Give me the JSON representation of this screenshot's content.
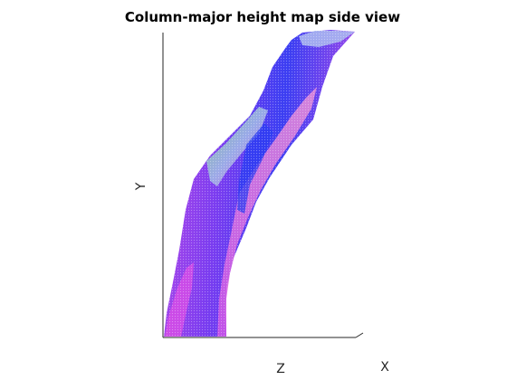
{
  "chart_data": {
    "type": "surface",
    "title": "Column-major height map side view",
    "xlabel": "X",
    "ylabel": "Y",
    "zlabel": "Z",
    "view": "side",
    "grid": false,
    "legend": "none",
    "colormap": "surface normals (RGB)",
    "colors": {
      "axis": "#262626",
      "ridge_green": "#7fd28a",
      "blue": "#2a3cf2",
      "violet": "#7a3cf0",
      "magenta": "#d04ee8",
      "pink": "#f07ad6"
    }
  }
}
